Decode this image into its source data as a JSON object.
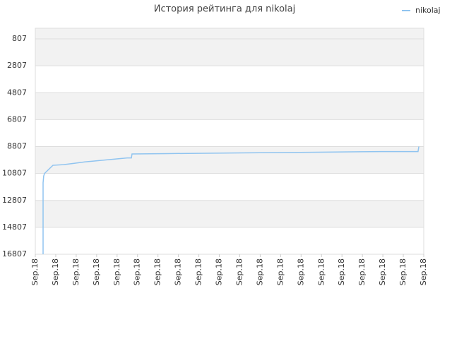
{
  "chart_data": {
    "type": "line",
    "title": "История рейтинга для nikolaj",
    "inverted_y": true,
    "grid": true,
    "legend": "top-right",
    "series": [
      {
        "name": "nikolaj",
        "color": "#90c4f0",
        "x": [
          0.38,
          0.38,
          0.41,
          0.45,
          0.86,
          1.38,
          1.9,
          2.42,
          3.11,
          3.8,
          4.49,
          4.7,
          4.73,
          6.49,
          10.02,
          13.47,
          16.93,
          18.72,
          18.76
        ],
        "values": [
          16807,
          11500,
          11000,
          10807,
          10200,
          10150,
          10050,
          9950,
          9850,
          9750,
          9650,
          9650,
          9358,
          9330,
          9280,
          9230,
          9180,
          9180,
          8807
        ]
      }
    ],
    "xlim": [
      0,
      19
    ],
    "xticks": [
      {
        "value": 0,
        "label": "Sep.18"
      },
      {
        "value": 1,
        "label": "Sep.18"
      },
      {
        "value": 2,
        "label": "Sep.18"
      },
      {
        "value": 3,
        "label": "Sep.18"
      },
      {
        "value": 4,
        "label": "Sep.18"
      },
      {
        "value": 5,
        "label": "Sep.18"
      },
      {
        "value": 6,
        "label": "Sep.18"
      },
      {
        "value": 7,
        "label": "Sep.18"
      },
      {
        "value": 8,
        "label": "Sep.18"
      },
      {
        "value": 9,
        "label": "Sep.18"
      },
      {
        "value": 10,
        "label": "Sep.18"
      },
      {
        "value": 11,
        "label": "Sep.18"
      },
      {
        "value": 12,
        "label": "Sep.18"
      },
      {
        "value": 13,
        "label": "Sep.18"
      },
      {
        "value": 14,
        "label": "Sep.18"
      },
      {
        "value": 15,
        "label": "Sep.18"
      },
      {
        "value": 16,
        "label": "Sep.18"
      },
      {
        "value": 17,
        "label": "Sep.18"
      },
      {
        "value": 18,
        "label": "Sep.18"
      },
      {
        "value": 19,
        "label": "Sep.18"
      }
    ],
    "ylim": [
      20,
      16807
    ],
    "yticks": [
      807,
      2807,
      4807,
      6807,
      8807,
      10807,
      12807,
      14807,
      16807
    ]
  }
}
